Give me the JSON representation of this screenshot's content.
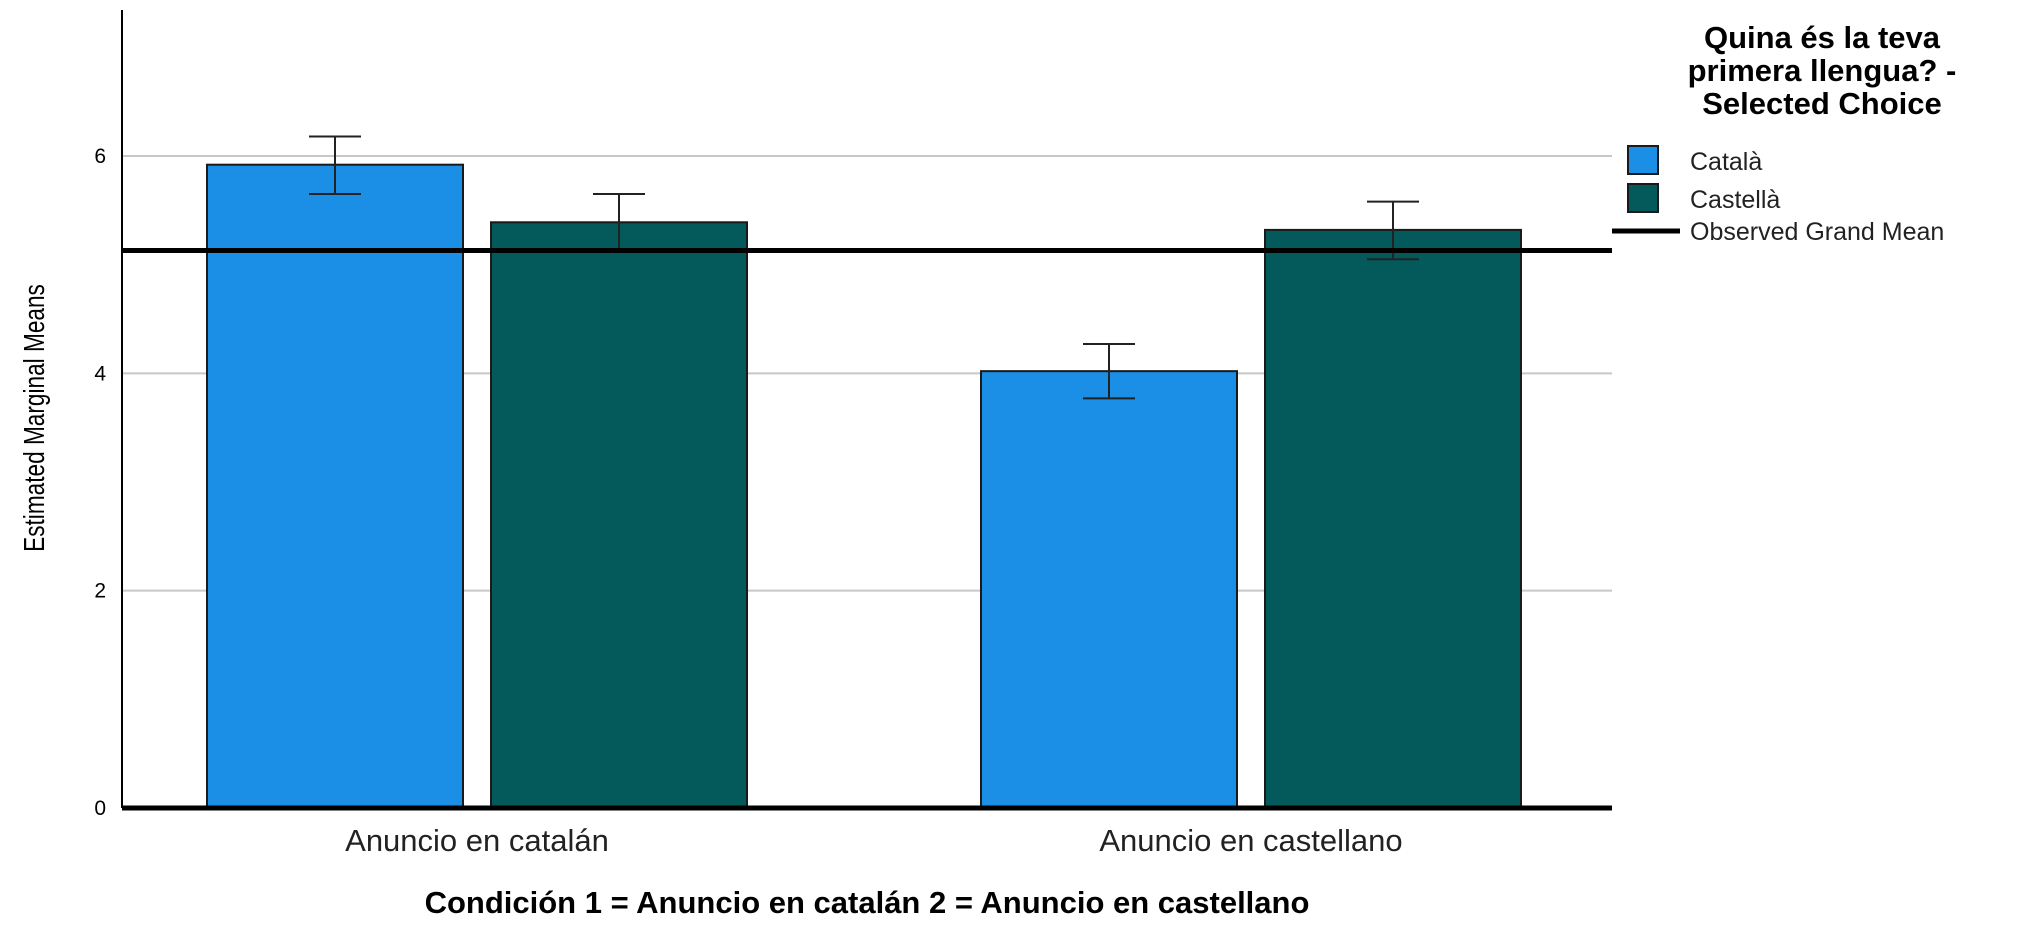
{
  "chart_data": {
    "type": "bar",
    "categories": [
      "Anuncio en catalán",
      "Anuncio en castellano"
    ],
    "series": [
      {
        "name": "Català",
        "values": [
          5.92,
          4.02
        ],
        "error_low": [
          5.65,
          3.77
        ],
        "error_high": [
          6.18,
          4.27
        ],
        "color": "#1b8fe6"
      },
      {
        "name": "Castellà",
        "values": [
          5.39,
          5.32
        ],
        "error_low": [
          5.12,
          5.05
        ],
        "error_high": [
          5.65,
          5.58
        ],
        "color": "#04595a"
      }
    ],
    "reference_line": {
      "label": "Observed Grand Mean",
      "value": 5.13
    },
    "xlabel": "Condición 1 = Anuncio en catalán 2 = Anuncio en castellano",
    "ylabel": "Estimated Marginal Means",
    "ylim": [
      0,
      7
    ],
    "yticks": [
      0,
      2,
      4,
      6
    ],
    "grid": true,
    "legend": {
      "title_lines": [
        "Quina és la teva",
        "primera llengua? -",
        "Selected Choice"
      ],
      "position": "right"
    }
  }
}
